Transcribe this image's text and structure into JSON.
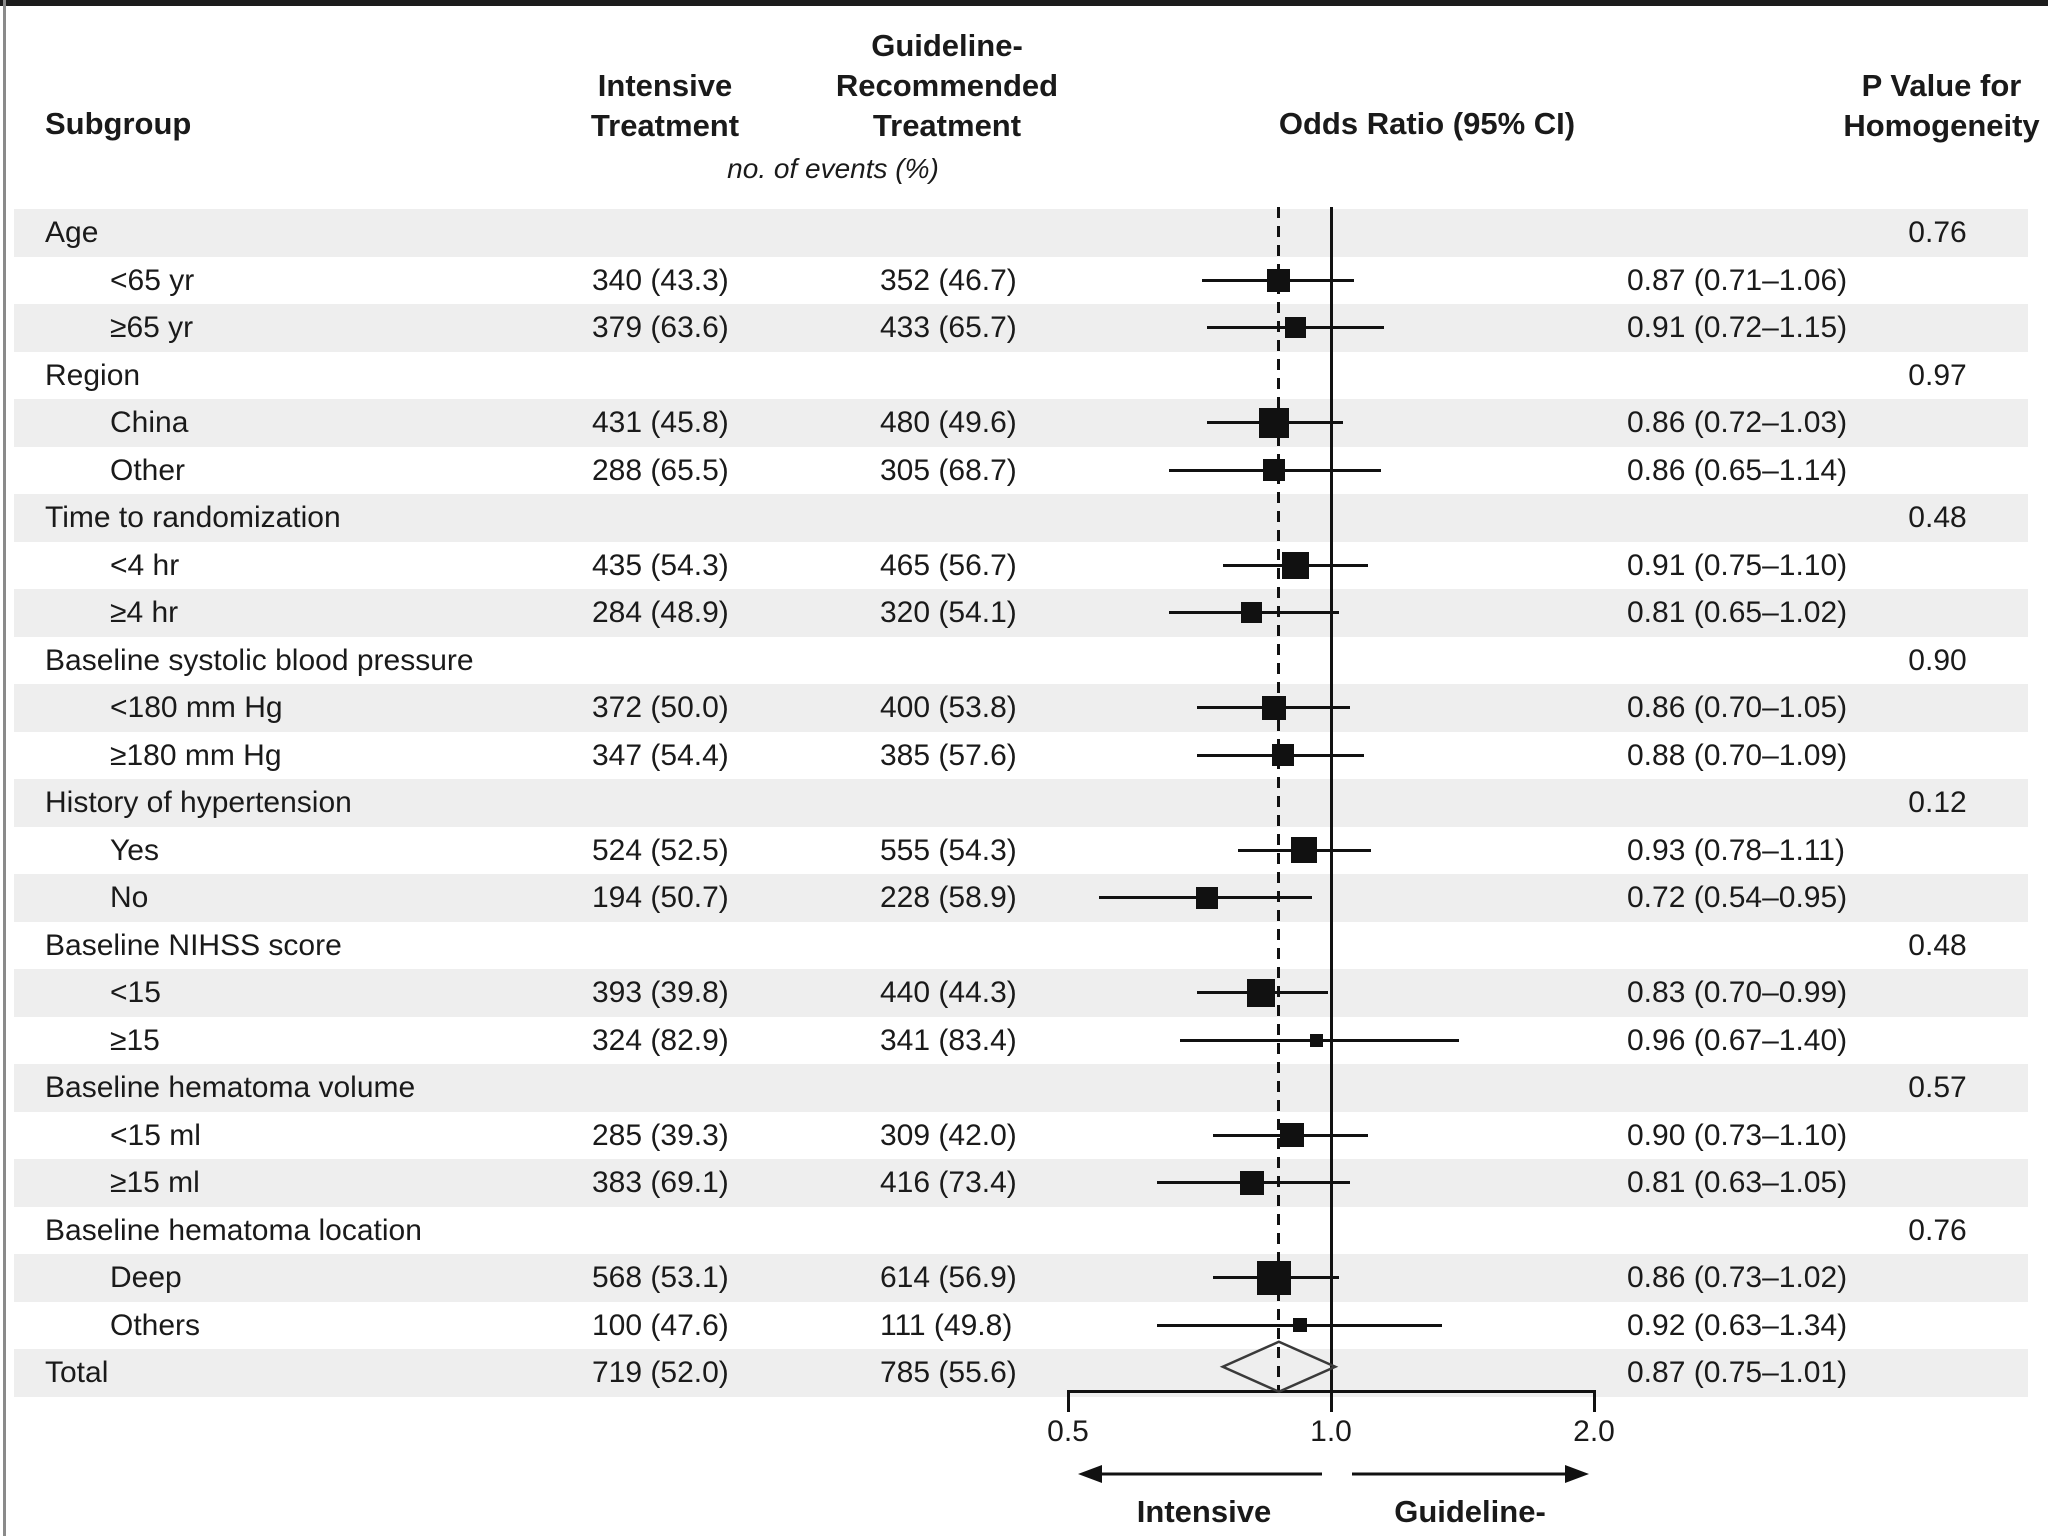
{
  "header": {
    "subgroup": "Subgroup",
    "intensive": "Intensive\nTreatment",
    "guideline": "Guideline-\nRecommended\nTreatment",
    "odds_ratio": "Odds Ratio (95% CI)",
    "p_value": "P Value for\nHomogeneity",
    "events_note": "no. of events (%)"
  },
  "axis": {
    "ticks": [
      "0.5",
      "1.0",
      "2.0"
    ],
    "left_label": "Intensive",
    "right_label": "Guideline-"
  },
  "colors": {
    "stripe": "#eeeeee",
    "text": "#1a1a1a",
    "marker": "#111111",
    "diamond_stroke": "#3a3a3a"
  },
  "chart_data": {
    "type": "forest",
    "x_axis": {
      "scale": "log",
      "tick_values": [
        0.5,
        1.0,
        2.0
      ],
      "range": [
        0.5,
        2.0
      ]
    },
    "reference_line": 1.0,
    "overall_dashed_line": 0.87,
    "direction_labels": {
      "left": "Intensive",
      "right": "Guideline-"
    },
    "rows": [
      {
        "kind": "group",
        "label": "Age",
        "p": "0.76"
      },
      {
        "kind": "item",
        "label": "<65 yr",
        "intensive": "340 (43.3)",
        "guideline": "352 (46.7)",
        "or": 0.87,
        "ci_low": 0.71,
        "ci_high": 1.06,
        "or_text": "0.87 (0.71–1.06)",
        "weight": 23
      },
      {
        "kind": "item",
        "label": "≥65 yr",
        "intensive": "379 (63.6)",
        "guideline": "433 (65.7)",
        "or": 0.91,
        "ci_low": 0.72,
        "ci_high": 1.15,
        "or_text": "0.91 (0.72–1.15)",
        "weight": 21
      },
      {
        "kind": "group",
        "label": "Region",
        "p": "0.97"
      },
      {
        "kind": "item",
        "label": "China",
        "intensive": "431 (45.8)",
        "guideline": "480 (49.6)",
        "or": 0.86,
        "ci_low": 0.72,
        "ci_high": 1.03,
        "or_text": "0.86 (0.72–1.03)",
        "weight": 30
      },
      {
        "kind": "item",
        "label": "Other",
        "intensive": "288 (65.5)",
        "guideline": "305 (68.7)",
        "or": 0.86,
        "ci_low": 0.65,
        "ci_high": 1.14,
        "or_text": "0.86 (0.65–1.14)",
        "weight": 22
      },
      {
        "kind": "group",
        "label": "Time to randomization",
        "p": "0.48"
      },
      {
        "kind": "item",
        "label": "<4 hr",
        "intensive": "435 (54.3)",
        "guideline": "465 (56.7)",
        "or": 0.91,
        "ci_low": 0.75,
        "ci_high": 1.1,
        "or_text": "0.91 (0.75–1.10)",
        "weight": 27
      },
      {
        "kind": "item",
        "label": "≥4 hr",
        "intensive": "284 (48.9)",
        "guideline": "320 (54.1)",
        "or": 0.81,
        "ci_low": 0.65,
        "ci_high": 1.02,
        "or_text": "0.81 (0.65–1.02)",
        "weight": 21
      },
      {
        "kind": "group",
        "label": "Baseline systolic blood pressure",
        "p": "0.90"
      },
      {
        "kind": "item",
        "label": "<180 mm Hg",
        "intensive": "372 (50.0)",
        "guideline": "400 (53.8)",
        "or": 0.86,
        "ci_low": 0.7,
        "ci_high": 1.05,
        "or_text": "0.86 (0.70–1.05)",
        "weight": 24
      },
      {
        "kind": "item",
        "label": "≥180 mm Hg",
        "intensive": "347 (54.4)",
        "guideline": "385 (57.6)",
        "or": 0.88,
        "ci_low": 0.7,
        "ci_high": 1.09,
        "or_text": "0.88 (0.70–1.09)",
        "weight": 22
      },
      {
        "kind": "group",
        "label": "History of hypertension",
        "p": "0.12"
      },
      {
        "kind": "item",
        "label": "Yes",
        "intensive": "524 (52.5)",
        "guideline": "555 (54.3)",
        "or": 0.93,
        "ci_low": 0.78,
        "ci_high": 1.11,
        "or_text": "0.93 (0.78–1.11)",
        "weight": 26
      },
      {
        "kind": "item",
        "label": "No",
        "intensive": "194 (50.7)",
        "guideline": "228 (58.9)",
        "or": 0.72,
        "ci_low": 0.54,
        "ci_high": 0.95,
        "or_text": "0.72 (0.54–0.95)",
        "weight": 22
      },
      {
        "kind": "group",
        "label": "Baseline NIHSS score",
        "p": "0.48"
      },
      {
        "kind": "item",
        "label": "<15",
        "intensive": "393 (39.8)",
        "guideline": "440 (44.3)",
        "or": 0.83,
        "ci_low": 0.7,
        "ci_high": 0.99,
        "or_text": "0.83 (0.70–0.99)",
        "weight": 28
      },
      {
        "kind": "item",
        "label": "≥15",
        "intensive": "324 (82.9)",
        "guideline": "341 (83.4)",
        "or": 0.96,
        "ci_low": 0.67,
        "ci_high": 1.4,
        "or_text": "0.96 (0.67–1.40)",
        "weight": 13
      },
      {
        "kind": "group",
        "label": "Baseline hematoma volume",
        "p": "0.57"
      },
      {
        "kind": "item",
        "label": "<15 ml",
        "intensive": "285 (39.3)",
        "guideline": "309 (42.0)",
        "or": 0.9,
        "ci_low": 0.73,
        "ci_high": 1.1,
        "or_text": "0.90 (0.73–1.10)",
        "weight": 24
      },
      {
        "kind": "item",
        "label": "≥15 ml",
        "intensive": "383 (69.1)",
        "guideline": "416 (73.4)",
        "or": 0.81,
        "ci_low": 0.63,
        "ci_high": 1.05,
        "or_text": "0.81 (0.63–1.05)",
        "weight": 24
      },
      {
        "kind": "group",
        "label": "Baseline hematoma location",
        "p": "0.76"
      },
      {
        "kind": "item",
        "label": "Deep",
        "intensive": "568 (53.1)",
        "guideline": "614 (56.9)",
        "or": 0.86,
        "ci_low": 0.73,
        "ci_high": 1.02,
        "or_text": "0.86 (0.73–1.02)",
        "weight": 34
      },
      {
        "kind": "item",
        "label": "Others",
        "intensive": "100 (47.6)",
        "guideline": "111 (49.8)",
        "or": 0.92,
        "ci_low": 0.63,
        "ci_high": 1.34,
        "or_text": "0.92 (0.63–1.34)",
        "weight": 14
      },
      {
        "kind": "total",
        "label": "Total",
        "intensive": "719 (52.0)",
        "guideline": "785 (55.6)",
        "or": 0.87,
        "ci_low": 0.75,
        "ci_high": 1.01,
        "or_text": "0.87 (0.75–1.01)"
      }
    ]
  }
}
